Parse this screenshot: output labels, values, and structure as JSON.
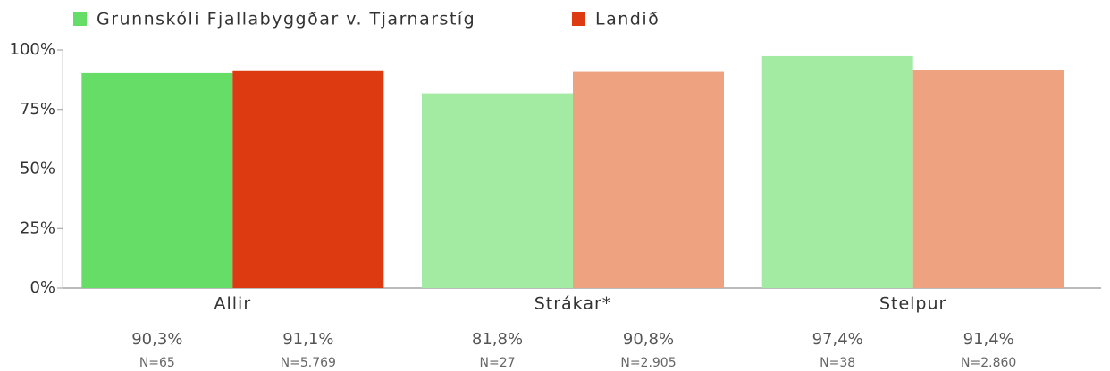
{
  "chart_data": {
    "type": "bar",
    "categories": [
      "Allir",
      "Strákar*",
      "Stelpur"
    ],
    "series": [
      {
        "name": "Grunnskóli Fjallabyggðar v. Tjarnarstíg",
        "color": "#66dd66",
        "colors": [
          "#66dd66",
          "#a3eaa3",
          "#a3eaa3"
        ],
        "values": [
          90.3,
          81.8,
          97.4
        ],
        "value_labels": [
          "90,3%",
          "81,8%",
          "97,4%"
        ],
        "n_labels": [
          "N=65",
          "N=27",
          "N=38"
        ]
      },
      {
        "name": "Landið",
        "color": "#de3a12",
        "colors": [
          "#de3a12",
          "#efa27f",
          "#efa27f"
        ],
        "values": [
          91.1,
          90.8,
          91.4
        ],
        "value_labels": [
          "91,1%",
          "90,8%",
          "91,4%"
        ],
        "n_labels": [
          "N=5.769",
          "N=2.905",
          "N=2.860"
        ]
      }
    ],
    "ylim": [
      0,
      100
    ],
    "yticks": [
      {
        "value": 0,
        "label": "0%"
      },
      {
        "value": 25,
        "label": "25%"
      },
      {
        "value": 50,
        "label": "50%"
      },
      {
        "value": 75,
        "label": "75%"
      },
      {
        "value": 100,
        "label": "100%"
      }
    ],
    "grid": false
  }
}
